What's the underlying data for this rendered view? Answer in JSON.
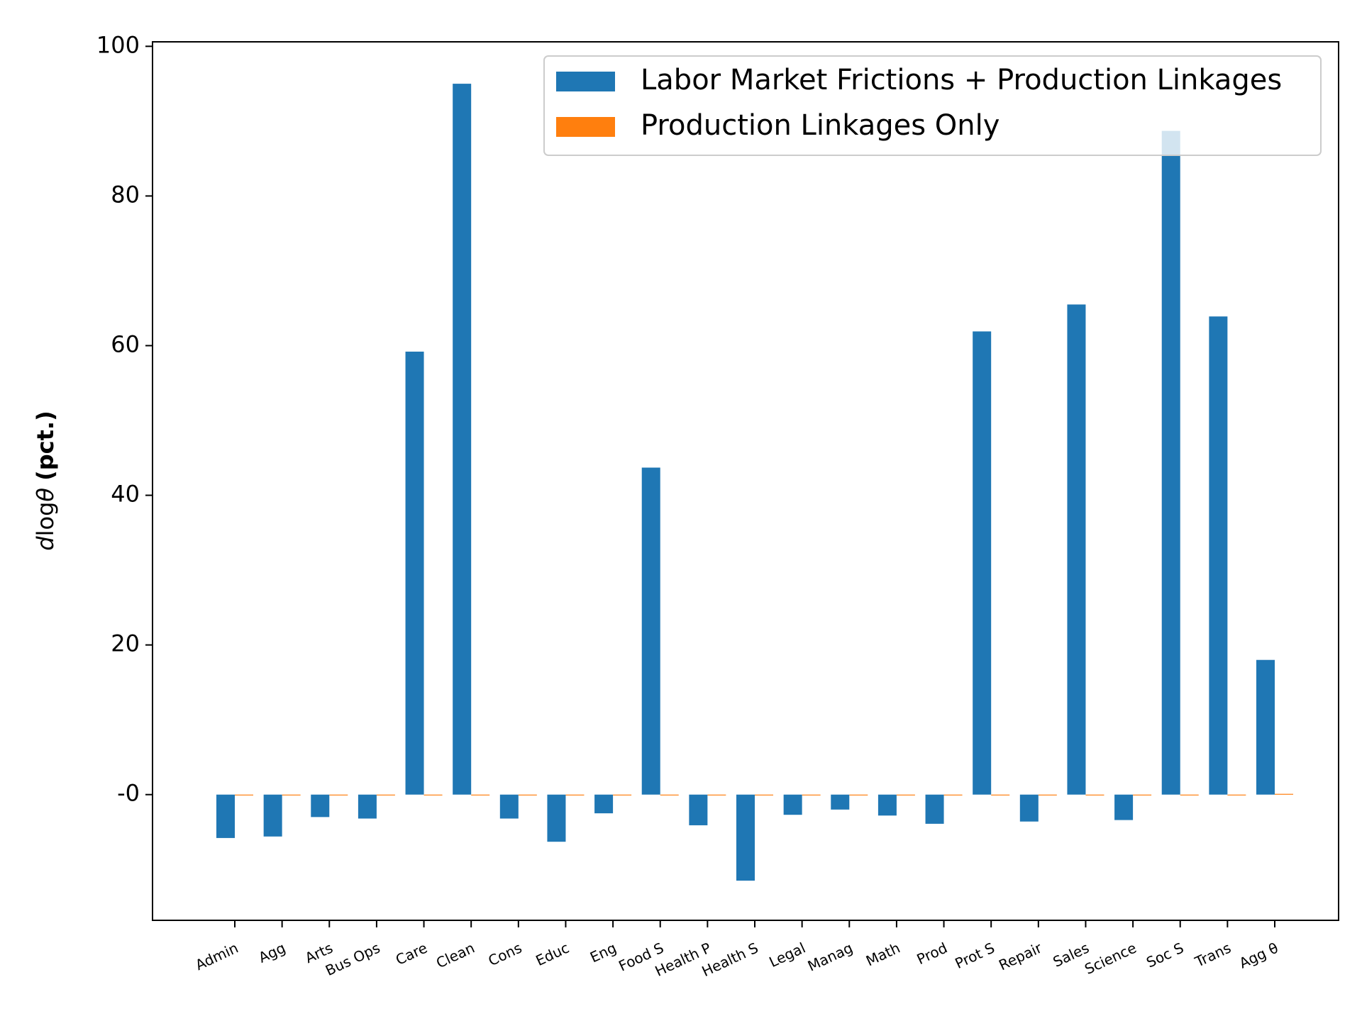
{
  "chart_data": {
    "type": "bar",
    "categories": [
      "Admin",
      "Agg",
      "Arts",
      "Bus Ops",
      "Care",
      "Clean",
      "Cons",
      "Educ",
      "Eng",
      "Food S",
      "Health P",
      "Health S",
      "Legal",
      "Manag",
      "Math",
      "Prod",
      "Prot S",
      "Repair",
      "Sales",
      "Science",
      "Soc S",
      "Trans",
      "Agg θ"
    ],
    "series": [
      {
        "name": "Labor Market Frictions + Production Linkages",
        "color": "#1f77b4",
        "values": [
          -5.8,
          -5.6,
          -3.0,
          -3.2,
          59.2,
          95.0,
          -3.2,
          -6.3,
          -2.5,
          43.7,
          -4.1,
          -11.5,
          -2.7,
          -2.0,
          -2.8,
          -3.9,
          61.9,
          -3.6,
          65.5,
          -3.4,
          88.7,
          63.9,
          18.0
        ]
      },
      {
        "name": "Production Linkages Only",
        "color": "#ff7f0e",
        "values": [
          0,
          0,
          0,
          0,
          0,
          0,
          0,
          0,
          0,
          0,
          0,
          0,
          0,
          0,
          0,
          0,
          0,
          0,
          0,
          0,
          0,
          0,
          0.1
        ]
      }
    ],
    "title": "",
    "xlabel": "",
    "ylabel": "d log θ  (pct.)",
    "ylim": [
      -16.8,
      100.6
    ],
    "yticks": [
      "-0",
      "20",
      "40",
      "60",
      "80",
      "100"
    ],
    "ytick_values": [
      0,
      20,
      40,
      60,
      80,
      100
    ],
    "grid": false,
    "legend_position": "top-right"
  }
}
